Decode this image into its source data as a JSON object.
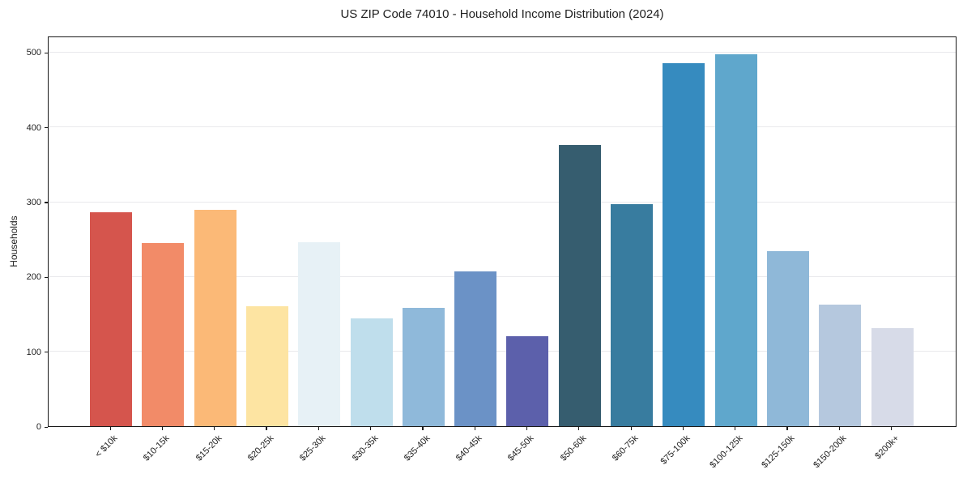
{
  "chart_data": {
    "type": "bar",
    "title": "US ZIP Code 74010 - Household Income Distribution (2024)",
    "xlabel": "",
    "ylabel": "Households",
    "categories": [
      "< $10k",
      "$10-15k",
      "$15-20k",
      "$20-25k",
      "$25-30k",
      "$30-35k",
      "$35-40k",
      "$40-45k",
      "$45-50k",
      "$50-60k",
      "$60-75k",
      "$75-100k",
      "$100-125k",
      "$125-150k",
      "$150-200k",
      "$200k+"
    ],
    "values": [
      286,
      245,
      289,
      160,
      246,
      144,
      158,
      207,
      120,
      376,
      297,
      485,
      497,
      234,
      163,
      131
    ],
    "bar_colors": [
      "#d5554d",
      "#f28b68",
      "#fbb977",
      "#fde4a2",
      "#e7f1f6",
      "#bfdeec",
      "#8fb9da",
      "#6b92c6",
      "#5c60ab",
      "#365d6f",
      "#387c9f",
      "#368bbf",
      "#5fa7cc",
      "#8fb8d8",
      "#b5c8de",
      "#d7dbe8"
    ],
    "yticks": [
      0,
      100,
      200,
      300,
      400,
      500
    ],
    "ylim": [
      0,
      522
    ],
    "grid": "horizontal",
    "legend": "none",
    "styles": {
      "grid_color": "#e9e9ec",
      "spine_color": "#1a1a1a",
      "text_color": "#1f1f1f",
      "background": "#ffffff"
    }
  }
}
